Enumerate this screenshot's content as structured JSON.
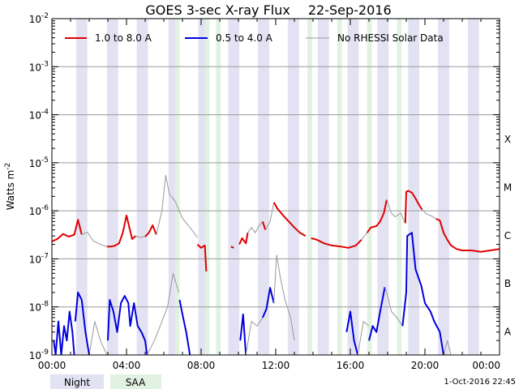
{
  "chart_data": {
    "type": "line",
    "title": "GOES 3-sec X-ray Flux",
    "date": "22-Sep-2016",
    "ylabel_main": "Watts m",
    "ylabel_exp": "-2",
    "y_scale": "log",
    "ylim": [
      1e-09,
      0.01
    ],
    "xlim_hours": [
      0,
      24
    ],
    "x_ticks": [
      "00:00",
      "04:00",
      "08:00",
      "12:00",
      "16:00",
      "20:00",
      "00:00"
    ],
    "y_ticks": [
      {
        "base": "10",
        "exp": "-9"
      },
      {
        "base": "10",
        "exp": "-8"
      },
      {
        "base": "10",
        "exp": "-7"
      },
      {
        "base": "10",
        "exp": "-6"
      },
      {
        "base": "10",
        "exp": "-5"
      },
      {
        "base": "10",
        "exp": "-4"
      },
      {
        "base": "10",
        "exp": "-3"
      },
      {
        "base": "10",
        "exp": "-2"
      }
    ],
    "flare_classes": [
      "A",
      "B",
      "C",
      "M",
      "X"
    ],
    "legend": [
      {
        "label": "1.0 to 8.0 A",
        "color": "#e00000"
      },
      {
        "label": "0.5 to 4.0 A",
        "color": "#0000e0"
      },
      {
        "label": "No RHESSI Solar Data",
        "color": "#999999"
      }
    ],
    "bottom_legend": [
      {
        "label": "Night",
        "color": "#e2e2f2"
      },
      {
        "label": "SAA",
        "color": "#e2f2e2"
      }
    ],
    "timestamp": "1-Oct-2016 22:45",
    "night_intervals": [
      [
        1.3,
        1.9
      ],
      [
        2.95,
        3.55
      ],
      [
        4.55,
        5.15
      ],
      [
        6.25,
        6.8
      ],
      [
        7.85,
        8.4
      ],
      [
        9.45,
        10.05
      ],
      [
        11.05,
        11.65
      ],
      [
        12.65,
        13.25
      ],
      [
        14.25,
        14.85
      ],
      [
        15.85,
        16.45
      ],
      [
        17.45,
        18.05
      ],
      [
        19.1,
        19.7
      ],
      [
        20.7,
        21.3
      ],
      [
        22.3,
        22.9
      ]
    ],
    "saa_intervals": [
      [
        6.6,
        6.85
      ],
      [
        8.2,
        8.45
      ],
      [
        8.8,
        9.05
      ],
      [
        13.7,
        13.95
      ],
      [
        15.3,
        15.55
      ],
      [
        16.9,
        17.15
      ],
      [
        18.5,
        18.75
      ]
    ],
    "series": [
      {
        "name": "1.0 to 8.0 A",
        "color": "#e00000",
        "gap_color": "#999999",
        "segments": [
          {
            "gap": false,
            "x": [
              0,
              0.3,
              0.6,
              0.9,
              1.2,
              1.4,
              1.6
            ],
            "y": [
              2.3e-07,
              2.6e-07,
              3.3e-07,
              2.9e-07,
              3.2e-07,
              6.5e-07,
              3.2e-07
            ]
          },
          {
            "gap": true,
            "x": [
              1.6,
              1.9,
              2.2,
              2.6,
              2.95
            ],
            "y": [
              3.2e-07,
              3.6e-07,
              2.4e-07,
              2e-07,
              1.8e-07
            ]
          },
          {
            "gap": false,
            "x": [
              2.95,
              3.2,
              3.4,
              3.6,
              3.8,
              4.0,
              4.3,
              4.5
            ],
            "y": [
              1.8e-07,
              1.8e-07,
              1.9e-07,
              2.1e-07,
              3.5e-07,
              8e-07,
              2.6e-07,
              3e-07
            ]
          },
          {
            "gap": true,
            "x": [
              4.5,
              4.7,
              5.0
            ],
            "y": [
              3e-07,
              2.8e-07,
              2.9e-07
            ]
          },
          {
            "gap": false,
            "x": [
              5.0,
              5.2,
              5.4,
              5.6
            ],
            "y": [
              2.9e-07,
              3.5e-07,
              5e-07,
              3.2e-07
            ]
          },
          {
            "gap": true,
            "x": [
              5.6,
              5.9,
              6.1,
              6.3,
              6.6,
              7.0,
              7.4,
              7.8
            ],
            "y": [
              3.2e-07,
              1e-06,
              5.5e-06,
              2.2e-06,
              1.6e-06,
              7e-07,
              4.5e-07,
              2.8e-07
            ]
          },
          {
            "gap": false,
            "x": [
              7.8,
              8.0,
              8.2,
              8.28
            ],
            "y": [
              2e-07,
              1.7e-07,
              1.9e-07,
              5.5e-08
            ]
          },
          {
            "gap": false,
            "x": [
              9.6,
              9.75
            ],
            "y": [
              1.8e-07,
              1.7e-07
            ]
          },
          {
            "gap": false,
            "x": [
              10.05,
              10.2,
              10.4,
              10.5
            ],
            "y": [
              2e-07,
              2.7e-07,
              2.1e-07,
              3.5e-07
            ]
          },
          {
            "gap": true,
            "x": [
              10.5,
              10.7,
              10.9,
              11.1,
              11.3
            ],
            "y": [
              3.5e-07,
              4.5e-07,
              3.5e-07,
              4.8e-07,
              6e-07
            ]
          },
          {
            "gap": false,
            "x": [
              11.3,
              11.45
            ],
            "y": [
              6e-07,
              4e-07
            ]
          },
          {
            "gap": true,
            "x": [
              11.45,
              11.7,
              11.9
            ],
            "y": [
              4e-07,
              6e-07,
              1.5e-06
            ]
          },
          {
            "gap": false,
            "x": [
              11.9,
              12.1,
              12.4,
              12.7,
              13.0,
              13.3,
              13.6
            ],
            "y": [
              1.5e-06,
              1.1e-06,
              8e-07,
              6e-07,
              4.5e-07,
              3.5e-07,
              3e-07
            ]
          },
          {
            "gap": false,
            "x": [
              13.9,
              14.2,
              14.6,
              15.0,
              15.5,
              15.9,
              16.3,
              16.6
            ],
            "y": [
              2.7e-07,
              2.5e-07,
              2.1e-07,
              1.9e-07,
              1.8e-07,
              1.7e-07,
              1.9e-07,
              2.5e-07
            ]
          },
          {
            "gap": true,
            "x": [
              16.6,
              16.9
            ],
            "y": [
              2.5e-07,
              3.5e-07
            ]
          },
          {
            "gap": false,
            "x": [
              16.9,
              17.1,
              17.4,
              17.6,
              17.8,
              17.95
            ],
            "y": [
              3.5e-07,
              4.5e-07,
              4.8e-07,
              6e-07,
              9e-07,
              1.7e-06
            ]
          },
          {
            "gap": true,
            "x": [
              17.95,
              18.2,
              18.4,
              18.7,
              18.95
            ],
            "y": [
              1.7e-06,
              9e-07,
              7.5e-07,
              9e-07,
              5.5e-07
            ]
          },
          {
            "gap": false,
            "x": [
              18.95,
              19.0,
              19.1,
              19.3,
              19.5,
              19.7,
              19.85
            ],
            "y": [
              5.5e-07,
              2.5e-06,
              2.6e-06,
              2.4e-06,
              1.8e-06,
              1.3e-06,
              1.05e-06
            ]
          },
          {
            "gap": true,
            "x": [
              19.85,
              20.1,
              20.3,
              20.6
            ],
            "y": [
              1.05e-06,
              8.5e-07,
              8e-07,
              6.8e-07
            ]
          },
          {
            "gap": false,
            "x": [
              20.6,
              20.8,
              21.0,
              21.2,
              21.4,
              21.7,
              22.0,
              22.5,
              23.0,
              23.5,
              24.0
            ],
            "y": [
              6.8e-07,
              6.3e-07,
              3.5e-07,
              2.5e-07,
              1.9e-07,
              1.6e-07,
              1.5e-07,
              1.5e-07,
              1.4e-07,
              1.5e-07,
              1.6e-07
            ]
          }
        ]
      },
      {
        "name": "0.5 to 4.0 A",
        "color": "#0000e0",
        "gap_color": "#999999",
        "segments": [
          {
            "gap": false,
            "x": [
              0.1,
              0.2,
              0.35,
              0.5,
              0.65,
              0.8,
              0.95,
              1.1,
              1.2
            ],
            "y": [
              2e-09,
              1e-09,
              5e-09,
              1e-09,
              4e-09,
              2e-09,
              8e-09,
              3e-09,
              1e-09
            ]
          },
          {
            "gap": false,
            "x": [
              1.25,
              1.4,
              1.6,
              1.8,
              2.0
            ],
            "y": [
              5e-09,
              2e-08,
              1.4e-08,
              3e-09,
              1e-09
            ]
          },
          {
            "gap": true,
            "x": [
              2.0,
              2.3,
              2.6,
              2.95
            ],
            "y": [
              1e-09,
              5e-09,
              2e-09,
              1e-09
            ]
          },
          {
            "gap": false,
            "x": [
              3.0,
              3.1,
              3.3,
              3.5,
              3.7,
              3.9,
              4.1,
              4.2,
              4.4,
              4.6,
              4.8,
              5.0,
              5.1
            ],
            "y": [
              2e-09,
              1.4e-08,
              8e-09,
              3e-09,
              1.2e-08,
              1.7e-08,
              1.2e-08,
              4e-09,
              1.2e-08,
              4e-09,
              3e-09,
              2e-09,
              1e-09
            ]
          },
          {
            "gap": true,
            "x": [
              5.1,
              5.5,
              5.9,
              6.2,
              6.5,
              6.8
            ],
            "y": [
              1e-09,
              2e-09,
              5e-09,
              1e-08,
              5e-08,
              2e-08
            ]
          },
          {
            "gap": false,
            "x": [
              6.85,
              7.0,
              7.2,
              7.4
            ],
            "y": [
              1.4e-08,
              7e-09,
              3e-09,
              1e-09
            ]
          },
          {
            "gap": false,
            "x": [
              10.1,
              10.25,
              10.4
            ],
            "y": [
              2e-09,
              7e-09,
              1e-09
            ]
          },
          {
            "gap": true,
            "x": [
              10.4,
              10.7,
              11.0,
              11.3
            ],
            "y": [
              1e-09,
              5e-09,
              4e-09,
              6e-09
            ]
          },
          {
            "gap": false,
            "x": [
              11.3,
              11.5,
              11.7,
              11.9
            ],
            "y": [
              6e-09,
              9e-09,
              2.5e-08,
              1.2e-08
            ]
          },
          {
            "gap": true,
            "x": [
              11.9,
              12.05,
              12.25,
              12.5,
              12.8,
              13.0
            ],
            "y": [
              1.2e-08,
              1.2e-07,
              4e-08,
              1.4e-08,
              6e-09,
              2e-09
            ]
          },
          {
            "gap": false,
            "x": [
              15.8,
              16.0,
              16.2,
              16.4
            ],
            "y": [
              3e-09,
              8e-09,
              2e-09,
              1e-09
            ]
          },
          {
            "gap": true,
            "x": [
              16.4,
              16.7,
              17.0
            ],
            "y": [
              1e-09,
              5e-09,
              4e-09
            ]
          },
          {
            "gap": false,
            "x": [
              17.0,
              17.2,
              17.4,
              17.6,
              17.85
            ],
            "y": [
              2e-09,
              4e-09,
              3e-09,
              8e-09,
              2.6e-08
            ]
          },
          {
            "gap": true,
            "x": [
              17.85,
              18.0,
              18.2,
              18.5,
              18.8
            ],
            "y": [
              2.6e-08,
              1.7e-08,
              8e-09,
              6e-09,
              4e-09
            ]
          },
          {
            "gap": false,
            "x": [
              18.8,
              19.0,
              19.05,
              19.3,
              19.5,
              19.8,
              20.0,
              20.3,
              20.5,
              20.8,
              21.0
            ],
            "y": [
              4e-09,
              2e-08,
              3e-07,
              3.5e-07,
              6e-08,
              2.8e-08,
              1.2e-08,
              8e-09,
              5e-09,
              3e-09,
              1e-09
            ]
          },
          {
            "gap": true,
            "x": [
              21.0,
              21.2,
              21.4
            ],
            "y": [
              1e-09,
              2e-09,
              1e-09
            ]
          }
        ]
      }
    ]
  }
}
